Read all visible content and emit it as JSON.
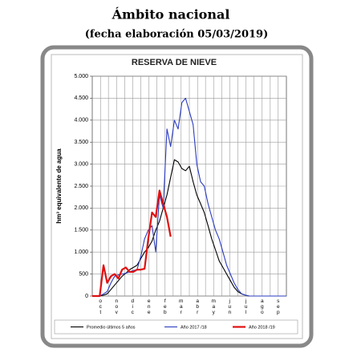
{
  "header": {
    "title": "Ámbito nacional",
    "subtitle": "(fecha elaboración 05/03/2019)"
  },
  "chart_data": {
    "type": "line",
    "title": "RESERVA DE NIEVE",
    "y_label": "hm³ equivalente de agua",
    "x": [
      0,
      1,
      2,
      3,
      4,
      5,
      6,
      7,
      8,
      9,
      10,
      11,
      12,
      13,
      14,
      15,
      16,
      17,
      18,
      19,
      20,
      21,
      22,
      23,
      24,
      25,
      26,
      27,
      28,
      29,
      30,
      31,
      32,
      33,
      34,
      35,
      36,
      37,
      38,
      39,
      40,
      41,
      42,
      43,
      44,
      45,
      46,
      47,
      48,
      49,
      50,
      51,
      52
    ],
    "xlim": [
      0,
      52
    ],
    "xticks": [
      {
        "value": 2.2,
        "label": "oct"
      },
      {
        "value": 6.5,
        "label": "nov"
      },
      {
        "value": 10.8,
        "label": "dic"
      },
      {
        "value": 15.2,
        "label": "ene"
      },
      {
        "value": 19.5,
        "label": "feb"
      },
      {
        "value": 23.8,
        "label": "mar"
      },
      {
        "value": 28.2,
        "label": "abr"
      },
      {
        "value": 32.5,
        "label": "may"
      },
      {
        "value": 36.8,
        "label": "jun"
      },
      {
        "value": 41.2,
        "label": "jul"
      },
      {
        "value": 45.5,
        "label": "ago"
      },
      {
        "value": 49.8,
        "label": "sep"
      }
    ],
    "ylim": [
      0,
      5000
    ],
    "yticks": [
      0,
      {
        "value": 500,
        "label": "500"
      },
      {
        "value": 1000,
        "label": "1.000"
      },
      {
        "value": 1500,
        "label": "1.500"
      },
      {
        "value": 2000,
        "label": "2.000"
      },
      {
        "value": 2500,
        "label": "2.500"
      },
      {
        "value": 3000,
        "label": "3.000"
      },
      {
        "value": 3500,
        "label": "3.500"
      },
      {
        "value": 4000,
        "label": "4.000"
      },
      {
        "value": 4500,
        "label": "4.500"
      },
      {
        "value": 5000,
        "label": "5.000"
      }
    ],
    "grid": true,
    "series": [
      {
        "name": "Promedio últimos 5 años",
        "color": "#000000",
        "values": [
          0,
          0,
          0,
          20,
          50,
          150,
          250,
          350,
          450,
          520,
          600,
          650,
          700,
          850,
          1000,
          1100,
          1250,
          1500,
          1700,
          2000,
          2300,
          2700,
          3100,
          3050,
          2900,
          2850,
          2950,
          2600,
          2300,
          2100,
          1900,
          1600,
          1300,
          1050,
          800,
          650,
          500,
          350,
          200,
          100,
          50,
          20,
          0,
          0,
          0,
          0,
          0,
          0,
          0,
          0,
          0,
          0,
          0
        ]
      },
      {
        "name": "Año 2017 /18",
        "color": "#2b3cc0",
        "values": [
          0,
          0,
          0,
          50,
          100,
          300,
          450,
          480,
          500,
          520,
          550,
          580,
          600,
          900,
          1300,
          1500,
          1600,
          1000,
          2300,
          2000,
          3800,
          3400,
          4000,
          3800,
          4400,
          4500,
          4200,
          3900,
          3000,
          2600,
          2500,
          2100,
          1800,
          1500,
          1300,
          1000,
          700,
          500,
          300,
          150,
          50,
          20,
          0,
          0,
          0,
          0,
          0,
          0,
          0,
          0,
          0,
          0,
          0
        ]
      },
      {
        "name": "Año 2018 /19",
        "color": "#e01010",
        "values": [
          0,
          0,
          0,
          700,
          300,
          450,
          500,
          400,
          600,
          650,
          550,
          550,
          600,
          600,
          620,
          1300,
          1900,
          1800,
          2400,
          2100,
          1800,
          1350,
          null,
          null,
          null,
          null,
          null,
          null,
          null,
          null,
          null,
          null,
          null,
          null,
          null,
          null,
          null,
          null,
          null,
          null,
          null,
          null,
          null,
          null,
          null,
          null,
          null,
          null,
          null,
          null,
          null,
          null,
          null
        ]
      }
    ]
  }
}
